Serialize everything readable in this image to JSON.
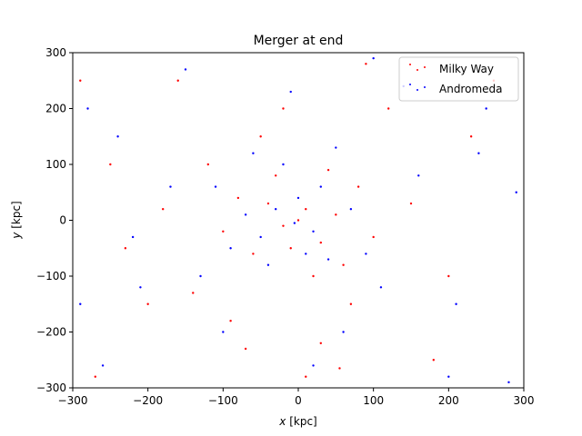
{
  "chart_data": {
    "type": "scatter",
    "title": "Merger at end",
    "xlabel_var": "x",
    "xlabel_unit": " [kpc]",
    "ylabel_var": "y",
    "ylabel_unit": " [kpc]",
    "xlim": [
      -300,
      300
    ],
    "ylim": [
      -300,
      300
    ],
    "xticks": [
      -300,
      -200,
      -100,
      0,
      100,
      200,
      300
    ],
    "yticks": [
      -300,
      -200,
      -100,
      0,
      100,
      200,
      300
    ],
    "xtick_labels": [
      "−300",
      "−200",
      "−100",
      "0",
      "100",
      "200",
      "300"
    ],
    "ytick_labels": [
      "−300",
      "−200",
      "−100",
      "0",
      "100",
      "200",
      "300"
    ],
    "grid": false,
    "legend_position": "top-right",
    "series": [
      {
        "name": "Milky Way",
        "color": "#ff0000",
        "points": [
          [
            -40,
            30
          ],
          [
            -20,
            -10
          ],
          [
            10,
            20
          ],
          [
            30,
            -40
          ],
          [
            -60,
            -60
          ],
          [
            -80,
            40
          ],
          [
            50,
            10
          ],
          [
            60,
            -80
          ],
          [
            -100,
            -20
          ],
          [
            -30,
            80
          ],
          [
            20,
            -100
          ],
          [
            80,
            60
          ],
          [
            -120,
            100
          ],
          [
            100,
            -30
          ],
          [
            0,
            0
          ],
          [
            -10,
            -50
          ],
          [
            40,
            90
          ],
          [
            -50,
            150
          ],
          [
            70,
            -150
          ],
          [
            -140,
            -130
          ],
          [
            -180,
            20
          ],
          [
            150,
            30
          ],
          [
            -90,
            -180
          ],
          [
            30,
            -220
          ],
          [
            55,
            -265
          ],
          [
            -70,
            -230
          ],
          [
            -200,
            -150
          ],
          [
            200,
            -100
          ],
          [
            -250,
            100
          ],
          [
            260,
            250
          ],
          [
            -270,
            -280
          ],
          [
            120,
            200
          ],
          [
            -160,
            250
          ],
          [
            90,
            280
          ],
          [
            -230,
            -50
          ],
          [
            180,
            -250
          ],
          [
            -20,
            200
          ],
          [
            10,
            -280
          ],
          [
            230,
            150
          ],
          [
            -290,
            250
          ]
        ]
      },
      {
        "name": "Andromeda",
        "color": "#0000ff",
        "points": [
          [
            -30,
            20
          ],
          [
            -50,
            -30
          ],
          [
            0,
            40
          ],
          [
            20,
            -20
          ],
          [
            -70,
            10
          ],
          [
            -40,
            -80
          ],
          [
            30,
            60
          ],
          [
            10,
            -60
          ],
          [
            -90,
            -50
          ],
          [
            -20,
            100
          ],
          [
            40,
            -70
          ],
          [
            70,
            20
          ],
          [
            -110,
            60
          ],
          [
            90,
            -60
          ],
          [
            -5,
            -5
          ],
          [
            -60,
            120
          ],
          [
            50,
            130
          ],
          [
            -130,
            -100
          ],
          [
            110,
            -120
          ],
          [
            -170,
            60
          ],
          [
            160,
            80
          ],
          [
            -100,
            -200
          ],
          [
            60,
            -200
          ],
          [
            -210,
            -120
          ],
          [
            210,
            -150
          ],
          [
            -240,
            150
          ],
          [
            250,
            200
          ],
          [
            -260,
            -260
          ],
          [
            140,
            240
          ],
          [
            -150,
            270
          ],
          [
            100,
            290
          ],
          [
            -220,
            -30
          ],
          [
            200,
            -280
          ],
          [
            -10,
            230
          ],
          [
            20,
            -260
          ],
          [
            240,
            120
          ],
          [
            -280,
            200
          ],
          [
            290,
            50
          ],
          [
            -290,
            -150
          ],
          [
            280,
            -290
          ]
        ]
      }
    ]
  }
}
